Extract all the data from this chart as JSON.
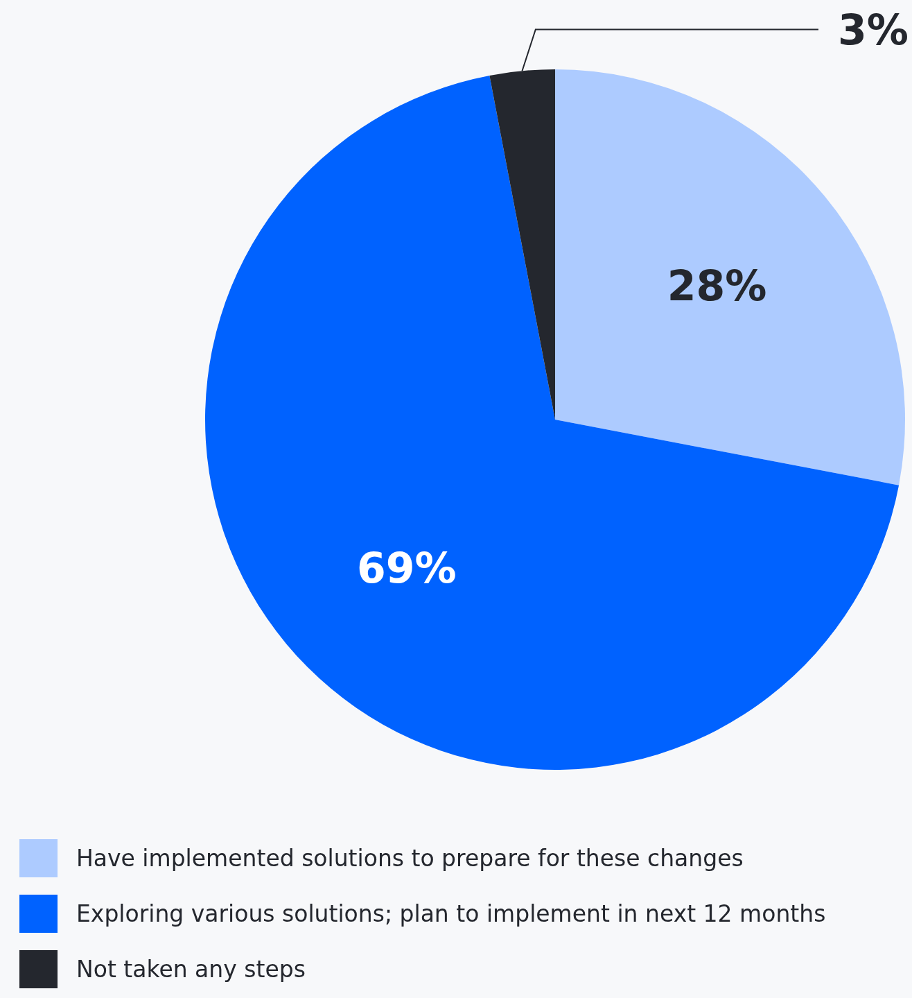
{
  "chart_data": {
    "type": "pie",
    "categories": [
      "Have implemented solutions to prepare for these changes",
      "Exploring various solutions; plan to implement in next 12 months",
      "Not taken any steps"
    ],
    "values": [
      28,
      69,
      3
    ],
    "colors": [
      "#adcbff",
      "#0062ff",
      "#24272e"
    ],
    "value_labels": [
      "28%",
      "69%",
      "3%"
    ],
    "legend": "bottom"
  }
}
